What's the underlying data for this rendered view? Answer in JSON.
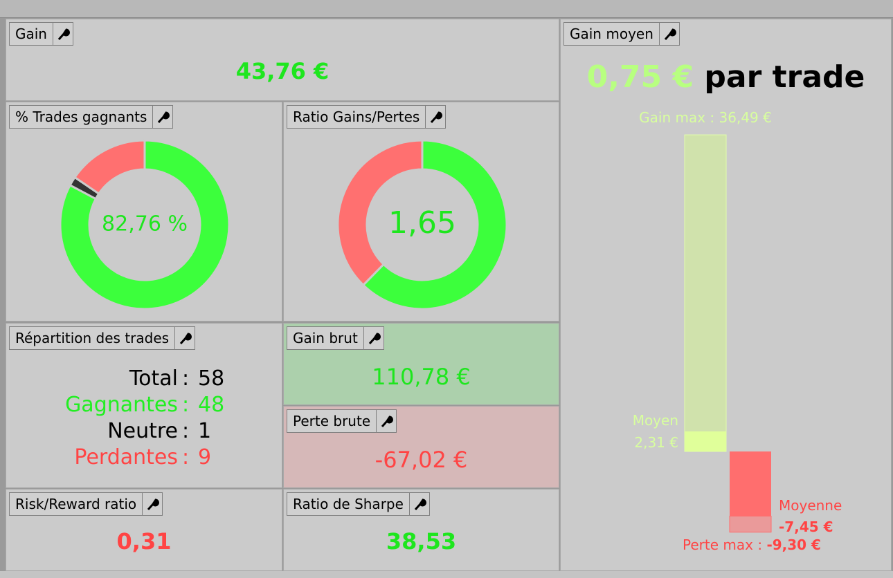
{
  "panels": {
    "gain": {
      "title": "Gain",
      "value": "43,76 €"
    },
    "win_rate": {
      "title": "% Trades gagnants",
      "center_label": "82,76 %"
    },
    "ratio": {
      "title": "Ratio Gains/Pertes",
      "center_label": "1,65"
    },
    "distribution": {
      "title": "Répartition des trades",
      "separator": ":",
      "rows": [
        {
          "label": "Total",
          "value": 58
        },
        {
          "label": "Gagnantes",
          "value": 48
        },
        {
          "label": "Neutre",
          "value": 1
        },
        {
          "label": "Perdantes",
          "value": 9
        }
      ]
    },
    "gross_gain": {
      "title": "Gain brut",
      "value": 110.78,
      "label": "110,78 €"
    },
    "gross_loss": {
      "title": "Perte brute",
      "value": -67.02,
      "label": "-67,02 €"
    },
    "risk_reward": {
      "title": "Risk/Reward ratio",
      "value": "0,31"
    },
    "sharpe": {
      "title": "Ratio de Sharpe",
      "value": "38,53"
    },
    "avg_gain": {
      "title": "Gain moyen",
      "value": "0,75 €",
      "suffix": "par trade",
      "max_gain": {
        "caption": "Gain max :",
        "value": 36.49,
        "label": "36,49 €"
      },
      "avg_win": {
        "caption": "Moyen",
        "value": 2.31,
        "label": "2,31 €"
      },
      "avg_loss": {
        "caption": "Moyenne",
        "value": -7.45,
        "label": "-7,45 €"
      },
      "max_loss": {
        "caption": "Perte max :",
        "value": -9.3,
        "label": "-9,30 €"
      }
    }
  }
}
